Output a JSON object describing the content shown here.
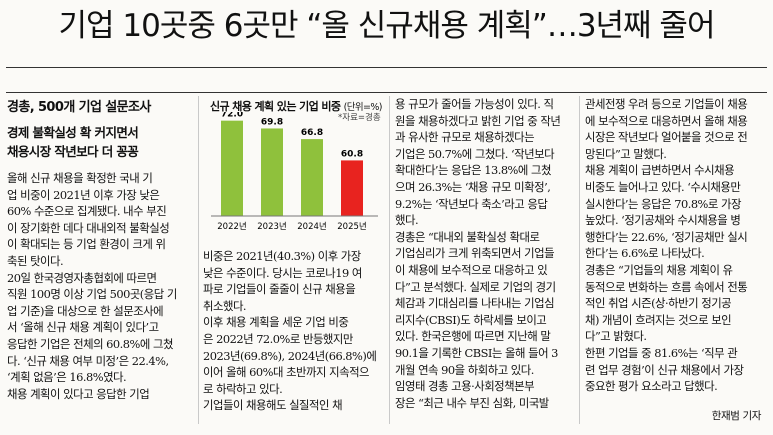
{
  "headline": "기업 10곳중 6곳만 “올 신규채용 계획”…3년째 줄어",
  "subheads": [
    "경총, 500개 기업 설문조사",
    "경제 불확실성 확 커지면서",
    "채용시장 작년보다 더 꽁꽁"
  ],
  "columns": [
    {
      "lines": [
        " 올해 신규 채용을 확정한 국내 기",
        "업 비중이 2021년 이후 가장 낮은",
        "60% 수준으로 집계됐다. 내수 부진",
        "이 장기화한 데다 대내외적 불확실성",
        "이 확대되는 등 기업 환경이 크게 위",
        "축된 탓이다.",
        " 20일 한국경영자총협회에 따르면",
        "직원 100명 이상 기업 500곳(응답 기",
        "업 기준)을 대상으로 한 설문조사에",
        "서 ‘올해 신규 채용 계획이 있다’고",
        "응답한 기업은 전체의 60.8%에 그쳤",
        "다. ‘신규 채용 여부 미정’은 22.4%,",
        "‘계획 없음’은 16.8%였다.",
        " 채용 계획이 있다고 응답한 기업"
      ]
    },
    {
      "lines": [
        " 비중은 2021년(40.3%) 이후 가장",
        "낮은 수준이다. 당시는 코로나19 여",
        "파로 기업들이 줄줄이 신규 채용을",
        "취소했다.",
        " 이후 채용 계획을 세운 기업 비중",
        "은 2022년 72.0%로 반등했지만",
        "2023년(69.8%), 2024년(66.8%)에",
        "이어 올해 60%대 초반까지 지속적으",
        "로 하락하고 있다.",
        " 기업들이 채용해도 실질적인 채"
      ]
    },
    {
      "lines": [
        "용 규모가 줄어들 가능성이 있다. 직",
        "원을 채용하겠다고 밝힌 기업 중 작년",
        "과 유사한 규모로 채용하겠다는",
        "기업은 50.7%에 그쳤다. ‘작년보다",
        "확대한다’는 응답은 13.8%에 그쳤",
        "으며 26.3%는 ‘채용 규모 미확정’,",
        "9.2%는 ‘작년보다 축소’라고 응답",
        "했다.",
        " 경총은 “대내외 불확실성 확대로",
        "기업심리가 크게 위축되면서 기업들",
        "이 채용에 보수적으로 대응하고 있",
        "다”고 분석했다. 실제로 기업의 경기",
        "체감과 기대심리를 나타내는 기업심",
        "리지수(CBSI)도 하락세를 보이고",
        "있다. 한국은행에 따르면 지난해 말",
        "90.1을 기록한 CBSI는 올해 들어 3",
        "개월 연속 90을 하회하고 있다.",
        " 임영태 경총 고용·사회정책본부",
        "장은 “최근 내수 부진 심화, 미국발"
      ]
    },
    {
      "lines": [
        "관세전쟁 우려 등으로 기업들이 채용",
        "에 보수적으로 대응하면서 올해 채용",
        "시장은 작년보다 얼어붙을 것으로 전",
        "망된다”고 말했다.",
        " 채용 계획이 급변하면서 수시채용",
        "비중도 늘어나고 있다. ‘수시채용만",
        "실시한다’는 응답은 70.8%로 가장",
        "높았다. ‘정기공채와 수시채용을 병",
        "행한다’는 22.6%, ‘정기공채만 실시",
        "한다’는 6.6%로 나타났다.",
        " 경총은 “기업들의 채용 계획이 유",
        "동적으로 변화하는 흐름 속에서 전통",
        "적인 취업 시즌(상·하반기 정기공",
        "채) 개념이 흐려지는 것으로 보인",
        "다”고 밝혔다.",
        " 한편 기업들 중 81.6%는 ‘직무 관",
        "련 업무 경험’이 신규 채용에서 가장",
        "중요한 평가 요소라고 답했다."
      ]
    }
  ],
  "byline": "한재범 기자",
  "chart": {
    "title": "신규 채용 계획 있는 기업 비중",
    "unit": "(단위=%)",
    "source": "*자료=경총"
  },
  "chart_data": {
    "type": "bar",
    "title": "신규 채용 계획 있는 기업 비중",
    "unit": "(단위=%)",
    "source": "*자료=경총",
    "categories": [
      "2022년",
      "2023년",
      "2024년",
      "2025년"
    ],
    "values": [
      72.0,
      69.8,
      66.8,
      60.8
    ],
    "value_labels": [
      "72.0",
      "69.8",
      "66.8",
      "60.8"
    ],
    "colors": [
      "#8fc13c",
      "#8fc13c",
      "#8fc13c",
      "#e8231f"
    ]
  }
}
